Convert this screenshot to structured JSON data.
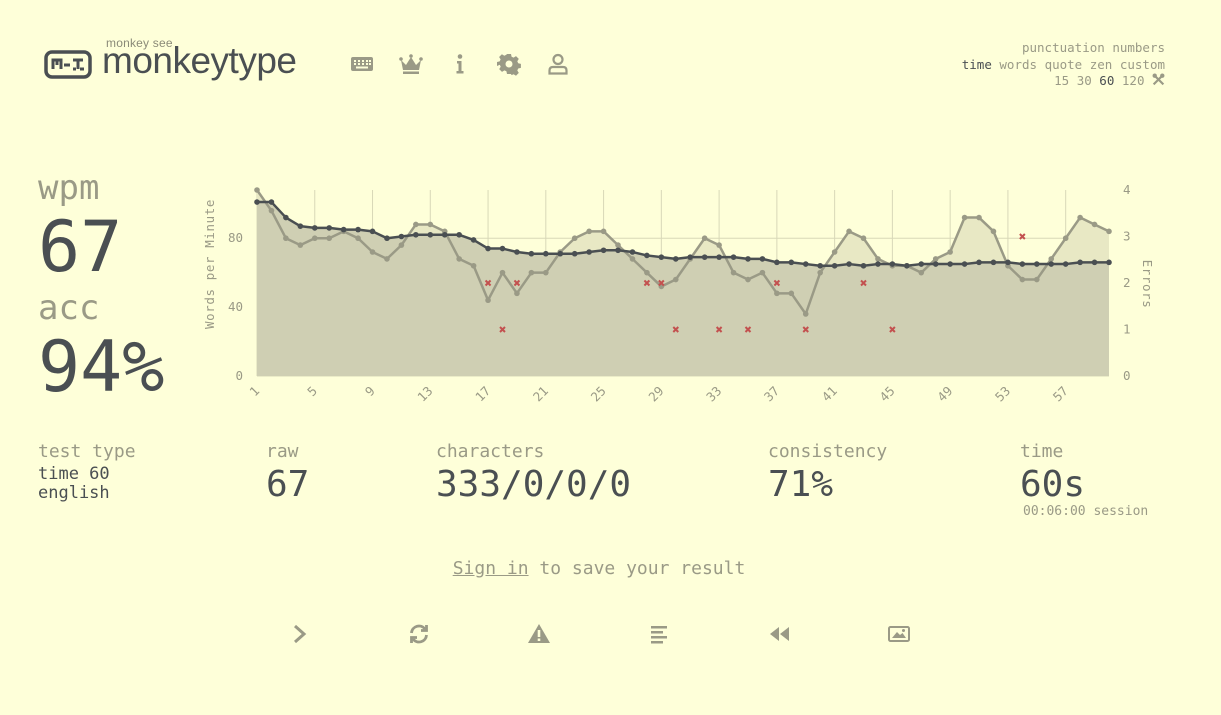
{
  "header": {
    "logo_sub": "monkey see",
    "logo_text": "monkeytype",
    "nav_icons": [
      "keyboard-icon",
      "crown-icon",
      "info-icon",
      "gear-icon",
      "user-icon"
    ]
  },
  "config": {
    "row1": [
      "punctuation",
      "numbers"
    ],
    "row2": [
      "time",
      "words",
      "quote",
      "zen",
      "custom"
    ],
    "row2_active": "time",
    "row3": [
      "15",
      "30",
      "60",
      "120"
    ],
    "row3_active": "60",
    "tools_icon": "wrench-icon"
  },
  "stats": {
    "wpm_label": "wpm",
    "wpm": "67",
    "acc_label": "acc",
    "acc": "94%",
    "test_type_label": "test type",
    "test_type_mode": "time 60",
    "test_type_lang": "english",
    "raw_label": "raw",
    "raw": "67",
    "characters_label": "characters",
    "characters": "333/0/0/0",
    "consistency_label": "consistency",
    "consistency": "71%",
    "time_label": "time",
    "time": "60s",
    "session": "00:06:00 session"
  },
  "signin": {
    "link": "Sign in",
    "rest": " to save your result"
  },
  "footer_icons": [
    "next-test-icon",
    "restart-icon",
    "report-icon",
    "word-history-icon",
    "replay-icon",
    "screenshot-icon"
  ],
  "colors": {
    "background": "#feffd9",
    "text": "#4a4f52",
    "sub": "#9a9a86",
    "error": "#c3514f"
  },
  "chart_data": {
    "type": "line",
    "ylabel": "Words per Minute",
    "y2label": "Errors",
    "ylim": [
      0,
      108
    ],
    "y2lim": [
      0,
      4
    ],
    "yticks": [
      0,
      40,
      80
    ],
    "y2ticks": [
      0,
      1,
      2,
      3,
      4
    ],
    "xlim": [
      1,
      60
    ],
    "xticks": [
      1,
      5,
      9,
      13,
      17,
      21,
      25,
      29,
      33,
      37,
      41,
      45,
      49,
      53,
      57
    ],
    "grid": true,
    "series": [
      {
        "kind": "raw",
        "x": [
          1,
          2,
          3,
          4,
          5,
          6,
          7,
          8,
          9,
          10,
          11,
          12,
          13,
          14,
          15,
          16,
          17,
          18,
          19,
          20,
          21,
          22,
          23,
          24,
          25,
          26,
          27,
          28,
          29,
          30,
          31,
          32,
          33,
          34,
          35,
          36,
          37,
          38,
          39,
          40,
          41,
          42,
          43,
          44,
          45,
          46,
          47,
          48,
          49,
          50,
          51,
          52,
          53,
          54,
          55,
          56,
          57,
          58,
          59,
          60
        ],
        "values": [
          108,
          96,
          80,
          76,
          80,
          80,
          84,
          80,
          72,
          68,
          76,
          88,
          88,
          84,
          68,
          64,
          44,
          60,
          48,
          60,
          60,
          72,
          80,
          84,
          84,
          76,
          68,
          60,
          52,
          56,
          68,
          80,
          76,
          60,
          56,
          60,
          48,
          48,
          36,
          60,
          72,
          84,
          80,
          68,
          64,
          64,
          60,
          68,
          72,
          92,
          92,
          84,
          64,
          56,
          56,
          68,
          80,
          92,
          88,
          84
        ]
      },
      {
        "kind": "wpm",
        "x": [
          1,
          2,
          3,
          4,
          5,
          6,
          7,
          8,
          9,
          10,
          11,
          12,
          13,
          14,
          15,
          16,
          17,
          18,
          19,
          20,
          21,
          22,
          23,
          24,
          25,
          26,
          27,
          28,
          29,
          30,
          31,
          32,
          33,
          34,
          35,
          36,
          37,
          38,
          39,
          40,
          41,
          42,
          43,
          44,
          45,
          46,
          47,
          48,
          49,
          50,
          51,
          52,
          53,
          54,
          55,
          56,
          57,
          58,
          59,
          60
        ],
        "values": [
          101,
          101,
          92,
          87,
          86,
          86,
          85,
          85,
          84,
          80,
          81,
          82,
          82,
          82,
          82,
          79,
          74,
          74,
          72,
          71,
          71,
          71,
          71,
          72,
          73,
          73,
          72,
          70,
          69,
          68,
          69,
          69,
          69,
          69,
          68,
          68,
          66,
          66,
          65,
          64,
          64,
          65,
          64,
          65,
          65,
          64,
          65,
          65,
          65,
          65,
          66,
          66,
          66,
          65,
          65,
          65,
          65,
          66,
          66,
          66
        ]
      },
      {
        "kind": "errors",
        "x": [
          17,
          18,
          19,
          28,
          29,
          30,
          33,
          35,
          37,
          39,
          43,
          45,
          54
        ],
        "values": [
          2,
          1,
          2,
          2,
          2,
          1,
          1,
          1,
          2,
          1,
          2,
          1,
          3
        ]
      }
    ]
  }
}
